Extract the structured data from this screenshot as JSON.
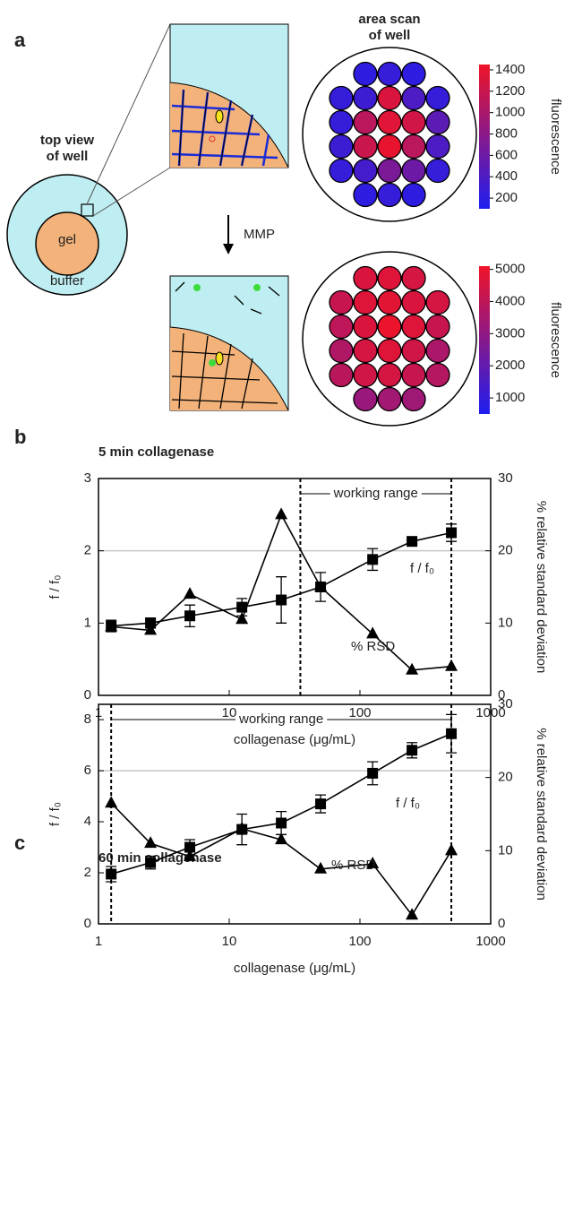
{
  "panel_labels": [
    "a",
    "b",
    "c"
  ],
  "diagram": {
    "well_title": [
      "top view",
      "of well"
    ],
    "gel": "gel",
    "buffer": "buffer",
    "arrow_label": "MMP",
    "scan_title": [
      "area scan",
      "of well"
    ]
  },
  "area_scans": [
    {
      "values": [
        [
          200,
          250,
          200
        ],
        [
          250,
          300,
          1300,
          400,
          250
        ],
        [
          250,
          1100,
          1350,
          1250,
          500
        ],
        [
          300,
          1200,
          1400,
          1100,
          400
        ],
        [
          250,
          350,
          700,
          600,
          250
        ],
        [
          200,
          250,
          200
        ]
      ],
      "colormap": [
        "#1e1ef0",
        "#f01428"
      ],
      "colorbar": {
        "label": "fluorescence",
        "lim": [
          100,
          1450
        ],
        "ticks": [
          200,
          400,
          600,
          800,
          1000,
          1200,
          1400
        ]
      }
    },
    {
      "values": [
        [
          4600,
          4700,
          4500
        ],
        [
          4200,
          4700,
          4800,
          4600,
          4500
        ],
        [
          4000,
          4600,
          5000,
          4700,
          4200
        ],
        [
          3700,
          4500,
          4700,
          4400,
          3600
        ],
        [
          3900,
          4400,
          4500,
          4200,
          3800
        ],
        [
          3200,
          3400,
          3300
        ]
      ],
      "colormap": [
        "#1e1ef0",
        "#f01428"
      ],
      "colorbar": {
        "label": "fluorescence",
        "lim": [
          500,
          5100
        ],
        "ticks": [
          1000,
          2000,
          3000,
          4000,
          5000
        ]
      }
    }
  ],
  "chart_data": [
    {
      "type": "line",
      "title": "5 min collagenase",
      "xlabel": "collagenase (μg/mL)",
      "ylabel": "f / f₀",
      "y2label": "% relative standard deviation",
      "log_x": true,
      "xlim": [
        1,
        1000
      ],
      "xticks": [
        1,
        10,
        100,
        1000
      ],
      "ylim": [
        0,
        3
      ],
      "yticks": [
        0,
        1,
        2,
        3
      ],
      "y2lim": [
        0,
        30
      ],
      "y2ticks": [
        0,
        10,
        20,
        30
      ],
      "grid": false,
      "reference_line": 2,
      "working_range": {
        "label": "working range",
        "x": [
          35,
          500
        ]
      },
      "x": [
        1.25,
        2.5,
        5,
        12.5,
        25,
        50,
        125,
        250,
        500
      ],
      "series": [
        {
          "name": "f / f₀",
          "color": "#000000",
          "marker": "square",
          "values": [
            0.96,
            1.0,
            1.1,
            1.22,
            1.32,
            1.5,
            1.88,
            2.13,
            2.25
          ],
          "errors": [
            0.08,
            0.07,
            0.15,
            0.12,
            0.32,
            0.2,
            0.15,
            0.03,
            0.12
          ]
        },
        {
          "name": "% RSD",
          "color": "#000000",
          "marker": "triangle",
          "axis": "y2",
          "values": [
            9.5,
            9,
            14,
            10.5,
            25,
            15,
            8.5,
            3.5,
            4
          ]
        }
      ]
    },
    {
      "type": "line",
      "title": "60 min collagenase",
      "xlabel": "collagenase (μg/mL)",
      "ylabel": "f / f₀",
      "y2label": "% relative standard deviation",
      "log_x": true,
      "xlim": [
        1,
        1000
      ],
      "xticks": [
        1,
        10,
        100,
        1000
      ],
      "ylim": [
        0,
        8.6
      ],
      "yticks": [
        0,
        2,
        4,
        6,
        8
      ],
      "y2lim": [
        0,
        30
      ],
      "y2ticks": [
        0,
        10,
        20,
        30
      ],
      "grid": false,
      "reference_line": 6,
      "working_range": {
        "label": "working range",
        "x": [
          1.25,
          500
        ]
      },
      "x": [
        1.25,
        2.5,
        5,
        12.5,
        25,
        50,
        125,
        250,
        500
      ],
      "series": [
        {
          "name": "f / f₀",
          "color": "#000000",
          "marker": "square",
          "values": [
            1.95,
            2.4,
            3.0,
            3.7,
            3.95,
            4.7,
            5.9,
            6.8,
            7.45
          ],
          "errors": [
            0.3,
            0.25,
            0.3,
            0.6,
            0.45,
            0.35,
            0.45,
            0.3,
            0.75
          ]
        },
        {
          "name": "% RSD",
          "color": "#000000",
          "marker": "triangle",
          "axis": "y2",
          "values": [
            16.5,
            11,
            9.2,
            13,
            11.5,
            7.5,
            8.2,
            1.2,
            10
          ]
        }
      ]
    }
  ]
}
